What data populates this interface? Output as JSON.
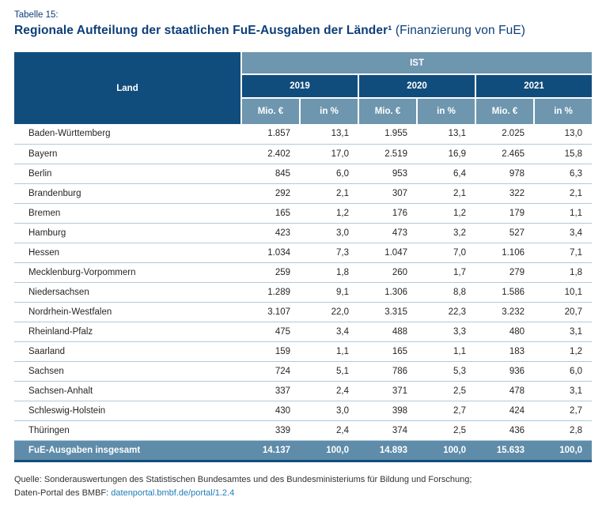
{
  "page": {
    "table_label": "Tabelle 15:",
    "title_bold": "Regionale Aufteilung der staatlichen FuE-Ausgaben der Länder¹",
    "title_regular": "(Finanzierung von FuE)"
  },
  "table": {
    "land_header": "Land",
    "group_header": "IST",
    "year_headers": [
      "2019",
      "2020",
      "2021"
    ],
    "unit_headers": [
      "Mio. €",
      "in %",
      "Mio. €",
      "in %",
      "Mio. €",
      "in %"
    ],
    "rows": [
      {
        "land": "Baden-Württemberg",
        "values": [
          "1.857",
          "13,1",
          "1.955",
          "13,1",
          "2.025",
          "13,0"
        ]
      },
      {
        "land": "Bayern",
        "values": [
          "2.402",
          "17,0",
          "2.519",
          "16,9",
          "2.465",
          "15,8"
        ]
      },
      {
        "land": "Berlin",
        "values": [
          "845",
          "6,0",
          "953",
          "6,4",
          "978",
          "6,3"
        ]
      },
      {
        "land": "Brandenburg",
        "values": [
          "292",
          "2,1",
          "307",
          "2,1",
          "322",
          "2,1"
        ]
      },
      {
        "land": "Bremen",
        "values": [
          "165",
          "1,2",
          "176",
          "1,2",
          "179",
          "1,1"
        ]
      },
      {
        "land": "Hamburg",
        "values": [
          "423",
          "3,0",
          "473",
          "3,2",
          "527",
          "3,4"
        ]
      },
      {
        "land": "Hessen",
        "values": [
          "1.034",
          "7,3",
          "1.047",
          "7,0",
          "1.106",
          "7,1"
        ]
      },
      {
        "land": "Mecklenburg-Vorpommern",
        "values": [
          "259",
          "1,8",
          "260",
          "1,7",
          "279",
          "1,8"
        ]
      },
      {
        "land": "Niedersachsen",
        "values": [
          "1.289",
          "9,1",
          "1.306",
          "8,8",
          "1.586",
          "10,1"
        ]
      },
      {
        "land": "Nordrhein-Westfalen",
        "values": [
          "3.107",
          "22,0",
          "3.315",
          "22,3",
          "3.232",
          "20,7"
        ]
      },
      {
        "land": "Rheinland-Pfalz",
        "values": [
          "475",
          "3,4",
          "488",
          "3,3",
          "480",
          "3,1"
        ]
      },
      {
        "land": "Saarland",
        "values": [
          "159",
          "1,1",
          "165",
          "1,1",
          "183",
          "1,2"
        ]
      },
      {
        "land": "Sachsen",
        "values": [
          "724",
          "5,1",
          "786",
          "5,3",
          "936",
          "6,0"
        ]
      },
      {
        "land": "Sachsen-Anhalt",
        "values": [
          "337",
          "2,4",
          "371",
          "2,5",
          "478",
          "3,1"
        ]
      },
      {
        "land": "Schleswig-Holstein",
        "values": [
          "430",
          "3,0",
          "398",
          "2,7",
          "424",
          "2,7"
        ]
      },
      {
        "land": "Thüringen",
        "values": [
          "339",
          "2,4",
          "374",
          "2,5",
          "436",
          "2,8"
        ]
      }
    ],
    "total_row": {
      "label": "FuE-Ausgaben insgesamt",
      "values": [
        "14.137",
        "100,0",
        "14.893",
        "100,0",
        "15.633",
        "100,0"
      ]
    }
  },
  "footer": {
    "source_line": "Quelle: Sonderauswertungen des Statistischen Bundesamtes und des Bundesministeriums für Bildung und Forschung;",
    "portal_prefix": "Daten-Portal des BMBF:",
    "portal_link": "datenportal.bmbf.de/portal/1.2.4"
  },
  "colors": {
    "header_dark_blue": "#114d7c",
    "header_light_blue": "#6e96ae",
    "total_row_blue": "#5f8ca9",
    "row_separator_blue": "#aec9de",
    "title_blue": "#0d3e78",
    "link_blue": "#1e7cb8"
  }
}
